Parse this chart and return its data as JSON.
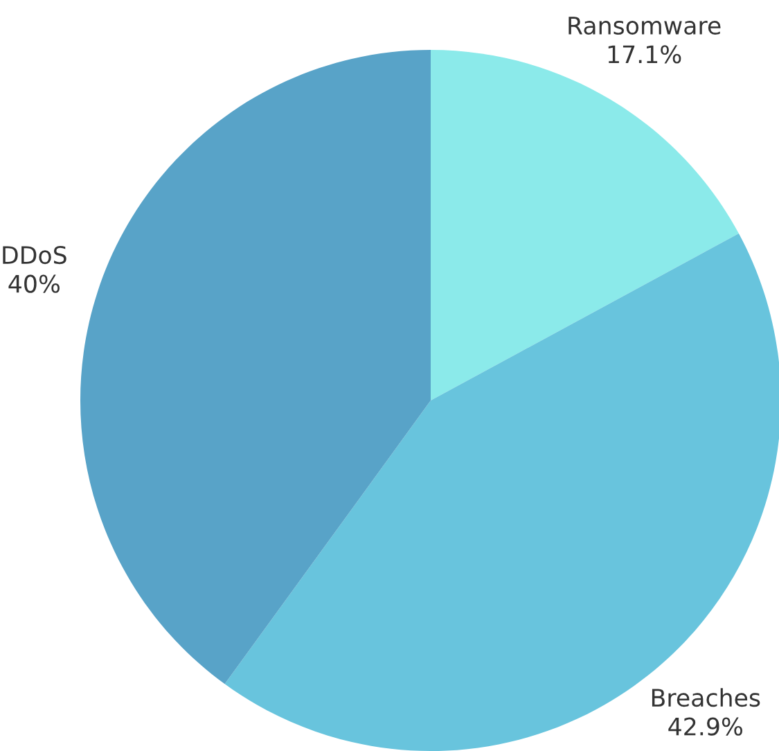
{
  "chart_data": {
    "type": "pie",
    "categories": [
      "Ransomware",
      "Breaches",
      "DDoS"
    ],
    "values": [
      17.1,
      42.9,
      40
    ],
    "value_labels": [
      "17.1%",
      "42.9%",
      "40%"
    ],
    "colors": [
      "#8beaea",
      "#68c4dd",
      "#58a3c8"
    ]
  }
}
